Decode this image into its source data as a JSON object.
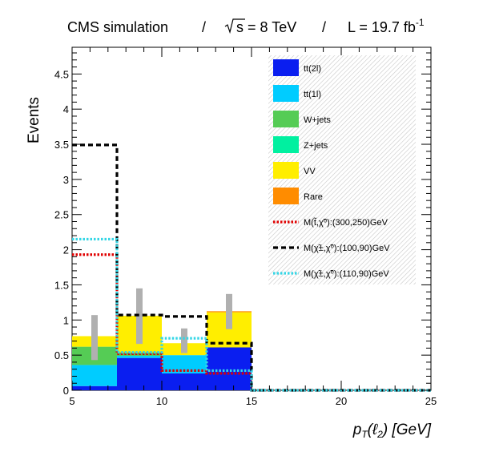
{
  "header": {
    "experiment": "CMS simulation",
    "energy": "s = 8 TeV",
    "lumi": "L = 19.7 fb",
    "lumi_exponent": "-1",
    "separator": "/"
  },
  "chart_data": {
    "type": "bar",
    "stacked": true,
    "xlabel": "p_T(ℓ_2)   [GeV]",
    "xlabel_parts": {
      "main": "p",
      "sub1": "T",
      "open": "(ℓ",
      "sub2": "2",
      "close": ")   [GeV]"
    },
    "ylabel": "Events",
    "xlim": [
      5,
      25
    ],
    "ylim": [
      0,
      4.88
    ],
    "x_ticks": [
      5,
      10,
      15,
      20,
      25
    ],
    "y_ticks": [
      0,
      0.5,
      1,
      1.5,
      2,
      2.5,
      3,
      3.5,
      4,
      4.5
    ],
    "y_tick_labels": [
      "0",
      "0.5",
      "1",
      "1.5",
      "2",
      "2.5",
      "3",
      "3.5",
      "4",
      "4.5"
    ],
    "bin_edges": [
      5,
      7.5,
      10,
      12.5,
      15,
      17.5,
      20,
      22.5,
      25
    ],
    "series": [
      {
        "name": "tt(2l)",
        "color": "#0a1ef0",
        "values": [
          0.06,
          0.46,
          0.24,
          0.61,
          0,
          0,
          0,
          0
        ]
      },
      {
        "name": "tt(1l)",
        "color": "#00ccff",
        "values": [
          0.3,
          0.03,
          0.26,
          0,
          0,
          0,
          0,
          0
        ]
      },
      {
        "name": "W+jets",
        "color": "#55cc55",
        "values": [
          0.26,
          0.05,
          0,
          0,
          0,
          0,
          0,
          0
        ]
      },
      {
        "name": "Z+jets",
        "color": "#00f0a0",
        "values": [
          0,
          0,
          0,
          0,
          0,
          0,
          0,
          0
        ]
      },
      {
        "name": "VV",
        "color": "#ffee00",
        "values": [
          0.15,
          0.52,
          0.17,
          0.5,
          0,
          0,
          0,
          0
        ]
      },
      {
        "name": "Rare",
        "color": "#ff8c00",
        "values": [
          0,
          0,
          0,
          0.015,
          0,
          0,
          0,
          0
        ]
      }
    ],
    "signals": [
      {
        "name": "M(t̃,χ̃⁰):(300,250)GeV",
        "color": "#e00000",
        "dash": "dotted",
        "values": [
          1.93,
          0.52,
          0.28,
          0.24,
          0,
          0,
          0,
          0
        ]
      },
      {
        "name": "M(χ̃±,χ̃⁰):(100,90)GeV",
        "color": "#000000",
        "dash": "dashed",
        "values": [
          3.49,
          1.07,
          1.05,
          0.67,
          0,
          0,
          0,
          0
        ]
      },
      {
        "name": "M(χ̃±,χ̃⁰):(110,90)GeV",
        "color": "#33d6e6",
        "dash": "dotted",
        "values": [
          2.15,
          0.54,
          0.74,
          0.28,
          0,
          0,
          0,
          0
        ]
      }
    ],
    "uncertainty": {
      "color": "#b0b0b0",
      "centers": [
        6.25,
        8.75,
        11.25,
        13.75
      ],
      "low": [
        0.43,
        0.66,
        0.53,
        0.87
      ],
      "high": [
        1.07,
        1.45,
        0.88,
        1.37
      ]
    },
    "legend": {
      "placement": "top-right",
      "items": [
        {
          "label": "tt(2l)",
          "kind": "fill",
          "color": "#0a1ef0"
        },
        {
          "label": "tt(1l)",
          "kind": "fill",
          "color": "#00ccff"
        },
        {
          "label": "W+jets",
          "kind": "fill",
          "color": "#55cc55"
        },
        {
          "label": "Z+jets",
          "kind": "fill",
          "color": "#00f0a0"
        },
        {
          "label": "VV",
          "kind": "fill",
          "color": "#ffee00"
        },
        {
          "label": "Rare",
          "kind": "fill",
          "color": "#ff8c00"
        },
        {
          "label": "M(t̃,χ̃⁰):(300,250)GeV",
          "kind": "line",
          "color": "#e00000",
          "dash": "dotted"
        },
        {
          "label": "M(χ̃±,χ̃⁰):(100,90)GeV",
          "kind": "line",
          "color": "#000000",
          "dash": "dashed"
        },
        {
          "label": "M(χ̃±,χ̃⁰):(110,90)GeV",
          "kind": "line",
          "color": "#33d6e6",
          "dash": "dotted"
        }
      ]
    },
    "grid": false
  }
}
